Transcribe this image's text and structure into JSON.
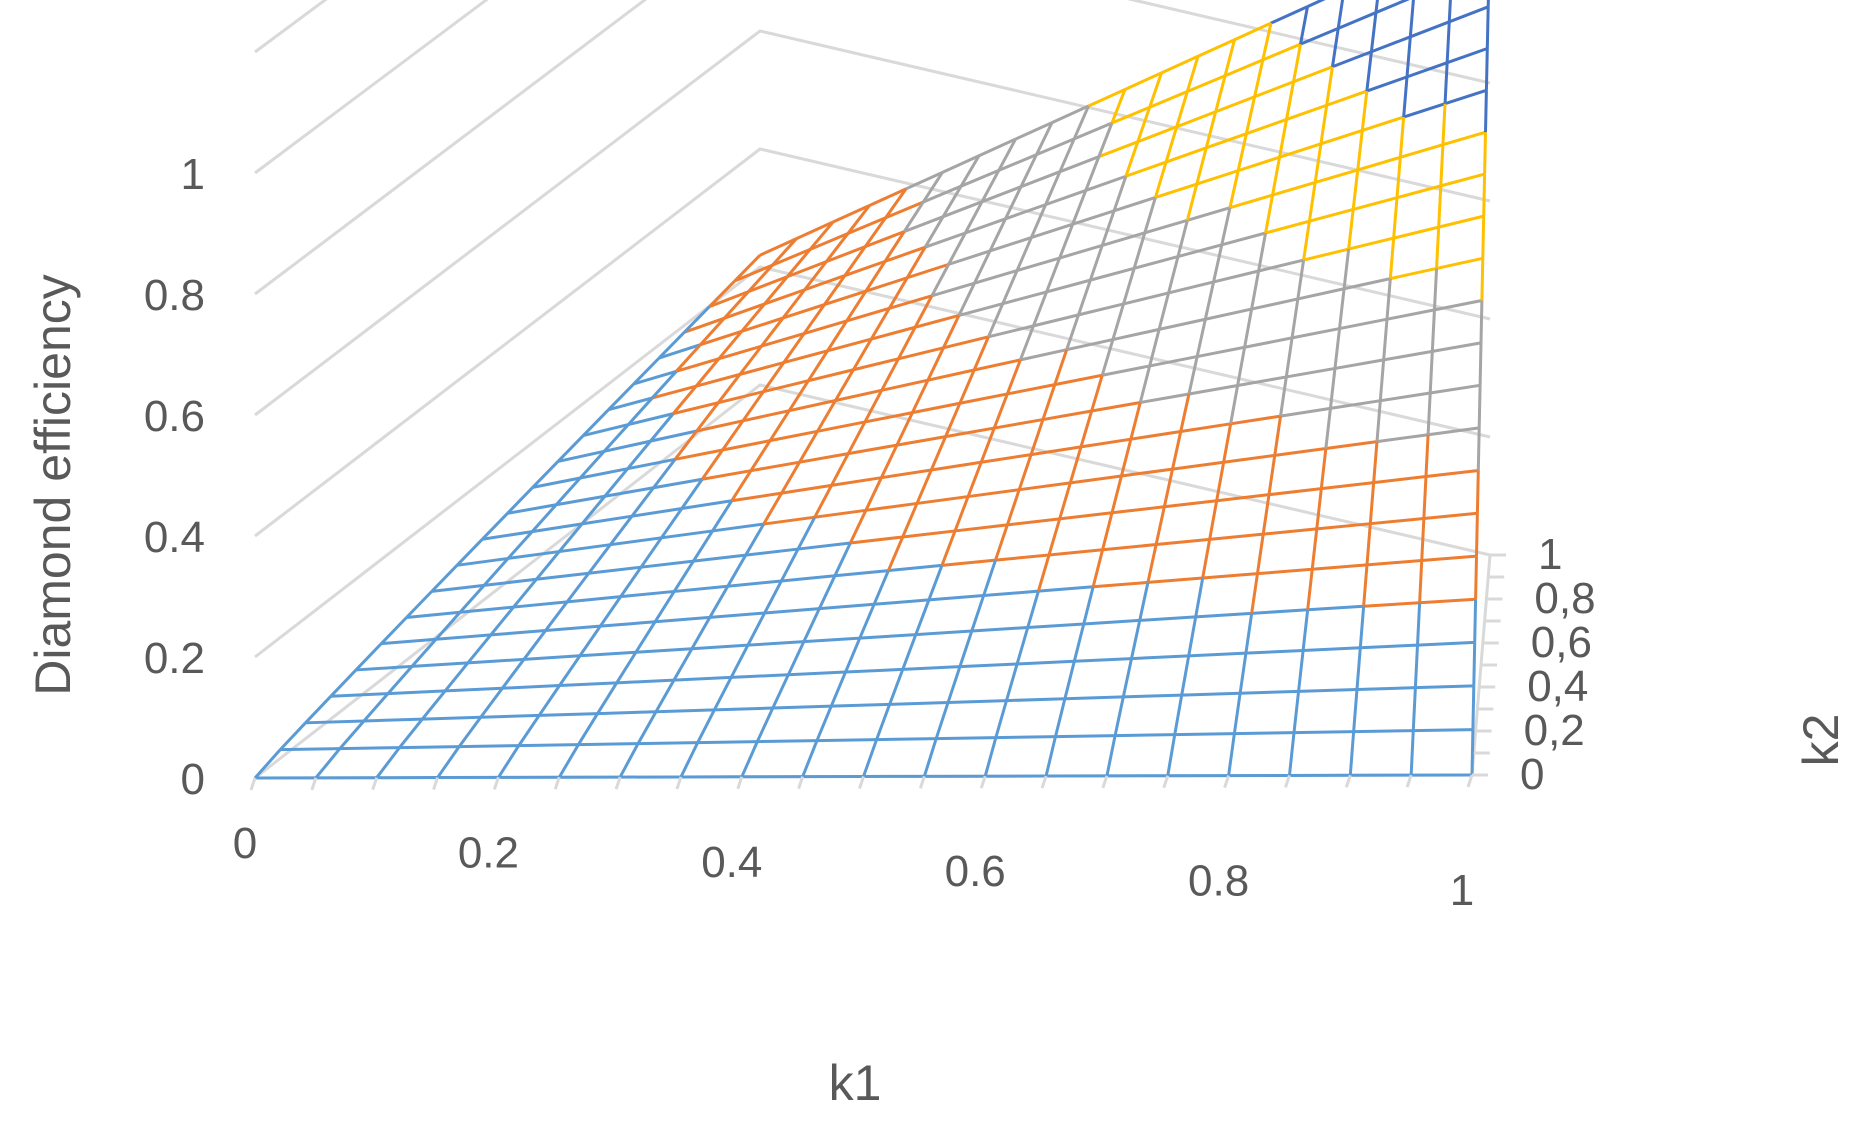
{
  "chart_data": {
    "type": "surface",
    "xlabel": "k1",
    "ylabel": "k2",
    "zlabel": "Diamond efficiency",
    "xlim": [
      0,
      1
    ],
    "ylim": [
      0,
      1
    ],
    "zlim": [
      0,
      1.2
    ],
    "x_ticks": [
      "0",
      "0.2",
      "0.4",
      "0.6",
      "0.8",
      "1"
    ],
    "y_ticks": [
      "0",
      "0,2",
      "0,4",
      "0,6",
      "0,8",
      "1"
    ],
    "z_ticks": [
      "0",
      "0.2",
      "0.4",
      "0.6",
      "0.8",
      "1"
    ],
    "grid": true,
    "color_bands": [
      {
        "range": [
          0,
          0.2
        ],
        "color": "#5B9BD5"
      },
      {
        "range": [
          0.2,
          0.4
        ],
        "color": "#ED7D31"
      },
      {
        "range": [
          0.4,
          0.6
        ],
        "color": "#A5A5A5"
      },
      {
        "range": [
          0.6,
          0.8
        ],
        "color": "#FFC000"
      },
      {
        "range": [
          0.8,
          1.0
        ],
        "color": "#4472C4"
      }
    ],
    "x": [
      0,
      0.05,
      0.1,
      0.15,
      0.2,
      0.25,
      0.3,
      0.35,
      0.4,
      0.45,
      0.5,
      0.55,
      0.6,
      0.65,
      0.7,
      0.75,
      0.8,
      0.85,
      0.9,
      0.95,
      1
    ],
    "y": [
      0,
      0.05,
      0.1,
      0.15,
      0.2,
      0.25,
      0.3,
      0.35,
      0.4,
      0.45,
      0.5,
      0.55,
      0.6,
      0.65,
      0.7,
      0.75,
      0.8,
      0.85,
      0.9,
      0.95,
      1
    ],
    "z_samples": [
      {
        "k1": 0,
        "k2": 0,
        "z": 0
      },
      {
        "k1": 1,
        "k2": 0,
        "z": 0
      },
      {
        "k1": 0,
        "k2": 1,
        "z": 0.2
      },
      {
        "k1": 1,
        "k2": 1,
        "z": 1.0
      },
      {
        "k1": 0.5,
        "k2": 0.5,
        "z": 0.25
      }
    ]
  }
}
